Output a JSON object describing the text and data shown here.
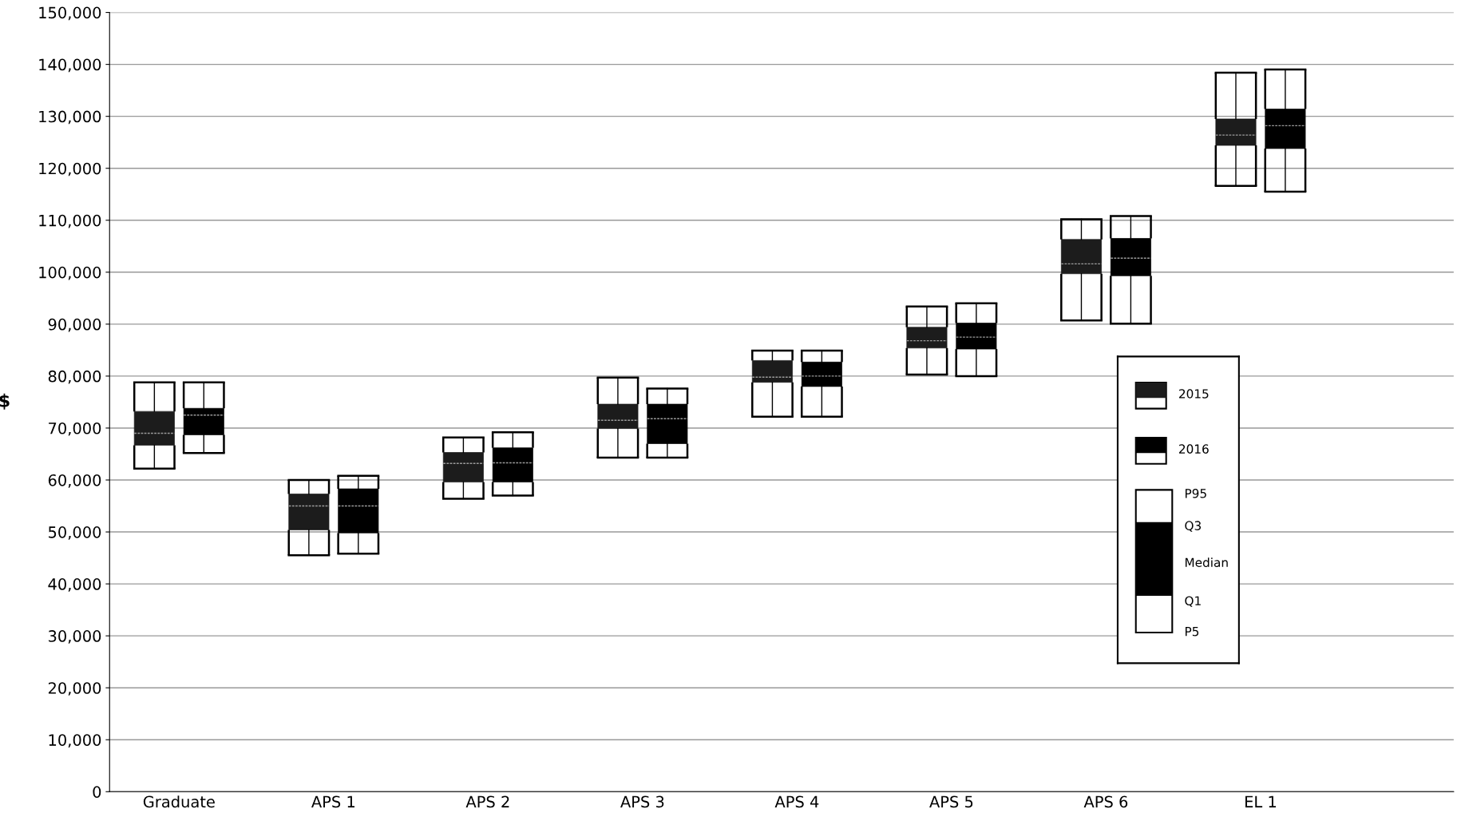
{
  "chart_data": {
    "type": "box",
    "ylabel": "$",
    "categories": [
      "Graduate",
      "APS 1",
      "APS 2",
      "APS 3",
      "APS 4",
      "APS 5",
      "APS 6",
      "EL 1"
    ],
    "series": [
      {
        "name": "2015",
        "color": "#1c1c1c",
        "boxes": [
          {
            "low": 62200,
            "q1": 66700,
            "median": 69000,
            "q3": 73200,
            "high": 78800
          },
          {
            "low": 45500,
            "q1": 50400,
            "median": 55000,
            "q3": 57300,
            "high": 60000
          },
          {
            "low": 56400,
            "q1": 59600,
            "median": 63200,
            "q3": 65300,
            "high": 68200
          },
          {
            "low": 64300,
            "q1": 69900,
            "median": 71500,
            "q3": 74600,
            "high": 79700
          },
          {
            "low": 72200,
            "q1": 78800,
            "median": 79800,
            "q3": 83000,
            "high": 84900
          },
          {
            "low": 80300,
            "q1": 85400,
            "median": 86800,
            "q3": 89400,
            "high": 93400
          },
          {
            "low": 90700,
            "q1": 99700,
            "median": 101600,
            "q3": 106300,
            "high": 110200
          },
          {
            "low": 116600,
            "q1": 124400,
            "median": 126400,
            "q3": 129500,
            "high": 138400
          }
        ]
      },
      {
        "name": "2016",
        "color": "#000000",
        "boxes": [
          {
            "low": 65200,
            "q1": 68700,
            "median": 72500,
            "q3": 73800,
            "high": 78800
          },
          {
            "low": 45800,
            "q1": 49800,
            "median": 55000,
            "q3": 58300,
            "high": 60800
          },
          {
            "low": 57000,
            "q1": 59600,
            "median": 63300,
            "q3": 66200,
            "high": 69200
          },
          {
            "low": 64300,
            "q1": 67000,
            "median": 71800,
            "q3": 74600,
            "high": 77600
          },
          {
            "low": 72200,
            "q1": 78000,
            "median": 80000,
            "q3": 82700,
            "high": 84900
          },
          {
            "low": 80000,
            "q1": 85200,
            "median": 87500,
            "q3": 90200,
            "high": 94000
          },
          {
            "low": 90100,
            "q1": 99300,
            "median": 102700,
            "q3": 106500,
            "high": 110800
          },
          {
            "low": 115500,
            "q1": 123800,
            "median": 128200,
            "q3": 131400,
            "high": 139000
          }
        ]
      }
    ],
    "ylim": [
      0,
      150000
    ],
    "yticks": [
      {
        "value": 0,
        "label": "0"
      },
      {
        "value": 10000,
        "label": "10,000"
      },
      {
        "value": 20000,
        "label": "20,000"
      },
      {
        "value": 30000,
        "label": "30,000"
      },
      {
        "value": 40000,
        "label": "40,000"
      },
      {
        "value": 50000,
        "label": "50,000"
      },
      {
        "value": 60000,
        "label": "60,000"
      },
      {
        "value": 70000,
        "label": "70,000"
      },
      {
        "value": 80000,
        "label": "80,000"
      },
      {
        "value": 90000,
        "label": "90,000"
      },
      {
        "value": 100000,
        "label": "100,000"
      },
      {
        "value": 110000,
        "label": "110,000"
      },
      {
        "value": 120000,
        "label": "120,000"
      },
      {
        "value": 130000,
        "label": "130,000"
      },
      {
        "value": 140000,
        "label": "140,000"
      },
      {
        "value": 150000,
        "label": "150,000"
      }
    ],
    "grid": "y",
    "legend": "right",
    "annotations": [
      "P95",
      "Q3",
      "Median",
      "Q1",
      "P5"
    ]
  }
}
